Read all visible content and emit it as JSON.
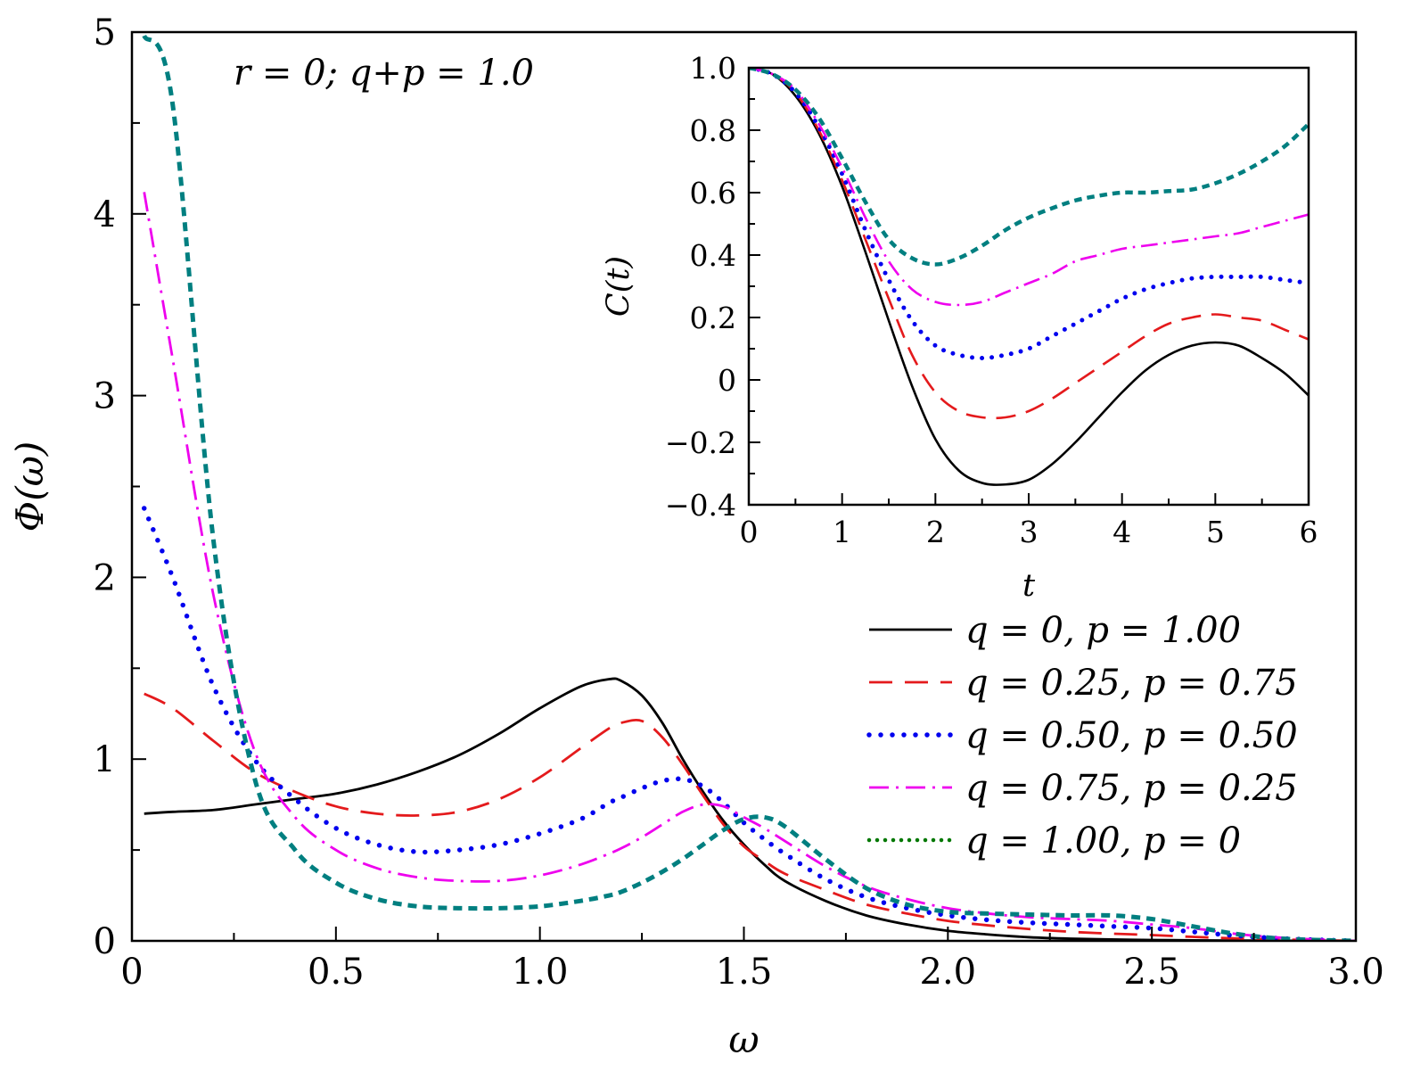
{
  "chart_data": [
    {
      "type": "line",
      "title": "",
      "annotation": "r = 0; q+p = 1.0",
      "xlabel": "ω",
      "ylabel": "Φ(ω)",
      "xlim": [
        0,
        3.0
      ],
      "ylim": [
        0,
        5
      ],
      "x_ticks": [
        0,
        0.5,
        1.0,
        1.5,
        2.0,
        2.5,
        3.0
      ],
      "x_tick_labels": [
        "0",
        "0.5",
        "1.0",
        "1.5",
        "2.0",
        "2.5",
        "3.0"
      ],
      "y_ticks": [
        0,
        1,
        2,
        3,
        4,
        5
      ],
      "y_tick_labels": [
        "0",
        "1",
        "2",
        "3",
        "4",
        "5"
      ],
      "legend_position": "right",
      "x": [
        0.03,
        0.1,
        0.2,
        0.3,
        0.4,
        0.5,
        0.6,
        0.7,
        0.8,
        0.9,
        1.0,
        1.1,
        1.17,
        1.2,
        1.25,
        1.3,
        1.35,
        1.4,
        1.45,
        1.5,
        1.55,
        1.6,
        1.7,
        1.8,
        1.9,
        2.0,
        2.1,
        2.2,
        2.3,
        2.4,
        2.5,
        2.6,
        2.7,
        2.8,
        2.9,
        3.0
      ],
      "series": [
        {
          "name": "q = 0,  p = 1.00",
          "color": "#000000",
          "dash": "solid",
          "values": [
            0.7,
            0.71,
            0.72,
            0.75,
            0.78,
            0.81,
            0.86,
            0.93,
            1.02,
            1.14,
            1.28,
            1.4,
            1.44,
            1.43,
            1.35,
            1.2,
            1.0,
            0.82,
            0.66,
            0.53,
            0.42,
            0.33,
            0.22,
            0.14,
            0.09,
            0.055,
            0.035,
            0.02,
            0.012,
            0.008,
            0.005,
            0.003,
            0.002,
            0.001,
            0.0005,
            0.0
          ]
        },
        {
          "name": "q = 0.25,  p = 0.75",
          "color": "#e41a1c",
          "dash": "long-dash",
          "values": [
            1.36,
            1.28,
            1.1,
            0.93,
            0.82,
            0.74,
            0.7,
            0.69,
            0.71,
            0.78,
            0.9,
            1.06,
            1.17,
            1.2,
            1.21,
            1.12,
            0.97,
            0.8,
            0.64,
            0.52,
            0.44,
            0.37,
            0.28,
            0.2,
            0.15,
            0.11,
            0.085,
            0.065,
            0.05,
            0.04,
            0.032,
            0.022,
            0.014,
            0.008,
            0.004,
            0.0
          ]
        },
        {
          "name": "q = 0.50,  p = 0.50",
          "color": "#0000ee",
          "dash": "dotted",
          "values": [
            2.38,
            2.0,
            1.4,
            1.0,
            0.78,
            0.62,
            0.53,
            0.49,
            0.5,
            0.53,
            0.59,
            0.67,
            0.76,
            0.79,
            0.84,
            0.88,
            0.89,
            0.85,
            0.76,
            0.65,
            0.56,
            0.48,
            0.34,
            0.24,
            0.18,
            0.14,
            0.115,
            0.1,
            0.09,
            0.08,
            0.07,
            0.05,
            0.03,
            0.015,
            0.006,
            0.0
          ]
        },
        {
          "name": "q = 0.75,  p = 0.25",
          "color": "#ee00ee",
          "dash": "dash-dot",
          "values": [
            4.12,
            3.2,
            1.9,
            1.05,
            0.68,
            0.5,
            0.4,
            0.35,
            0.33,
            0.33,
            0.36,
            0.42,
            0.48,
            0.51,
            0.57,
            0.64,
            0.71,
            0.75,
            0.74,
            0.68,
            0.62,
            0.55,
            0.41,
            0.3,
            0.23,
            0.18,
            0.15,
            0.13,
            0.12,
            0.11,
            0.09,
            0.07,
            0.04,
            0.02,
            0.008,
            0.0
          ]
        },
        {
          "name": "q = 1.00,  p = 0",
          "color": "#007f80",
          "dash": "short-dash",
          "legend_color": "#007700",
          "values": [
            4.98,
            4.6,
            2.2,
            0.9,
            0.5,
            0.32,
            0.23,
            0.19,
            0.18,
            0.18,
            0.19,
            0.22,
            0.25,
            0.27,
            0.32,
            0.38,
            0.45,
            0.53,
            0.61,
            0.67,
            0.68,
            0.63,
            0.45,
            0.29,
            0.2,
            0.16,
            0.15,
            0.145,
            0.14,
            0.14,
            0.12,
            0.08,
            0.04,
            0.015,
            0.005,
            0.0
          ]
        }
      ]
    },
    {
      "type": "line",
      "title": "",
      "xlabel": "t",
      "ylabel": "C(t)",
      "xlim": [
        0,
        6
      ],
      "ylim": [
        -0.4,
        1.0
      ],
      "x_ticks": [
        0,
        1,
        2,
        3,
        4,
        5,
        6
      ],
      "x_tick_labels": [
        "0",
        "1",
        "2",
        "3",
        "4",
        "5",
        "6"
      ],
      "y_ticks": [
        -0.4,
        -0.2,
        0,
        0.2,
        0.4,
        0.6,
        0.8,
        1.0
      ],
      "y_tick_labels": [
        "−0.4",
        "−0.2",
        "0",
        "0.2",
        "0.4",
        "0.6",
        "0.8",
        "1.0"
      ],
      "x": [
        0,
        0.25,
        0.5,
        0.75,
        1.0,
        1.25,
        1.5,
        1.75,
        2.0,
        2.25,
        2.5,
        2.75,
        3.0,
        3.25,
        3.5,
        3.75,
        4.0,
        4.25,
        4.5,
        4.75,
        5.0,
        5.25,
        5.5,
        5.75,
        6.0
      ],
      "series": [
        {
          "name": "q = 0,  p = 1.00",
          "color": "#000000",
          "dash": "solid",
          "values": [
            1.0,
            0.98,
            0.91,
            0.79,
            0.62,
            0.41,
            0.19,
            -0.02,
            -0.19,
            -0.29,
            -0.33,
            -0.335,
            -0.32,
            -0.27,
            -0.2,
            -0.12,
            -0.04,
            0.03,
            0.08,
            0.11,
            0.12,
            0.11,
            0.07,
            0.02,
            -0.05
          ]
        },
        {
          "name": "q = 0.25,  p = 0.75",
          "color": "#e41a1c",
          "dash": "long-dash",
          "values": [
            1.0,
            0.98,
            0.92,
            0.8,
            0.64,
            0.45,
            0.26,
            0.08,
            -0.04,
            -0.1,
            -0.12,
            -0.12,
            -0.1,
            -0.06,
            -0.01,
            0.04,
            0.09,
            0.14,
            0.18,
            0.2,
            0.21,
            0.2,
            0.19,
            0.16,
            0.13
          ]
        },
        {
          "name": "q = 0.50,  p = 0.50",
          "color": "#0000ee",
          "dash": "dotted",
          "values": [
            1.0,
            0.98,
            0.92,
            0.81,
            0.66,
            0.48,
            0.32,
            0.19,
            0.11,
            0.08,
            0.07,
            0.08,
            0.1,
            0.14,
            0.18,
            0.22,
            0.26,
            0.29,
            0.31,
            0.325,
            0.33,
            0.33,
            0.33,
            0.32,
            0.31
          ]
        },
        {
          "name": "q = 0.75,  p = 0.25",
          "color": "#ee00ee",
          "dash": "dash-dot",
          "values": [
            1.0,
            0.98,
            0.93,
            0.82,
            0.68,
            0.52,
            0.38,
            0.29,
            0.25,
            0.24,
            0.25,
            0.28,
            0.31,
            0.34,
            0.38,
            0.4,
            0.42,
            0.43,
            0.44,
            0.45,
            0.46,
            0.47,
            0.49,
            0.51,
            0.53
          ]
        },
        {
          "name": "q = 1.00,  p = 0",
          "color": "#007f80",
          "dash": "short-dash",
          "values": [
            1.0,
            0.98,
            0.93,
            0.84,
            0.71,
            0.57,
            0.45,
            0.39,
            0.37,
            0.39,
            0.43,
            0.48,
            0.52,
            0.55,
            0.575,
            0.59,
            0.6,
            0.6,
            0.605,
            0.61,
            0.63,
            0.66,
            0.7,
            0.75,
            0.82
          ]
        }
      ]
    }
  ]
}
